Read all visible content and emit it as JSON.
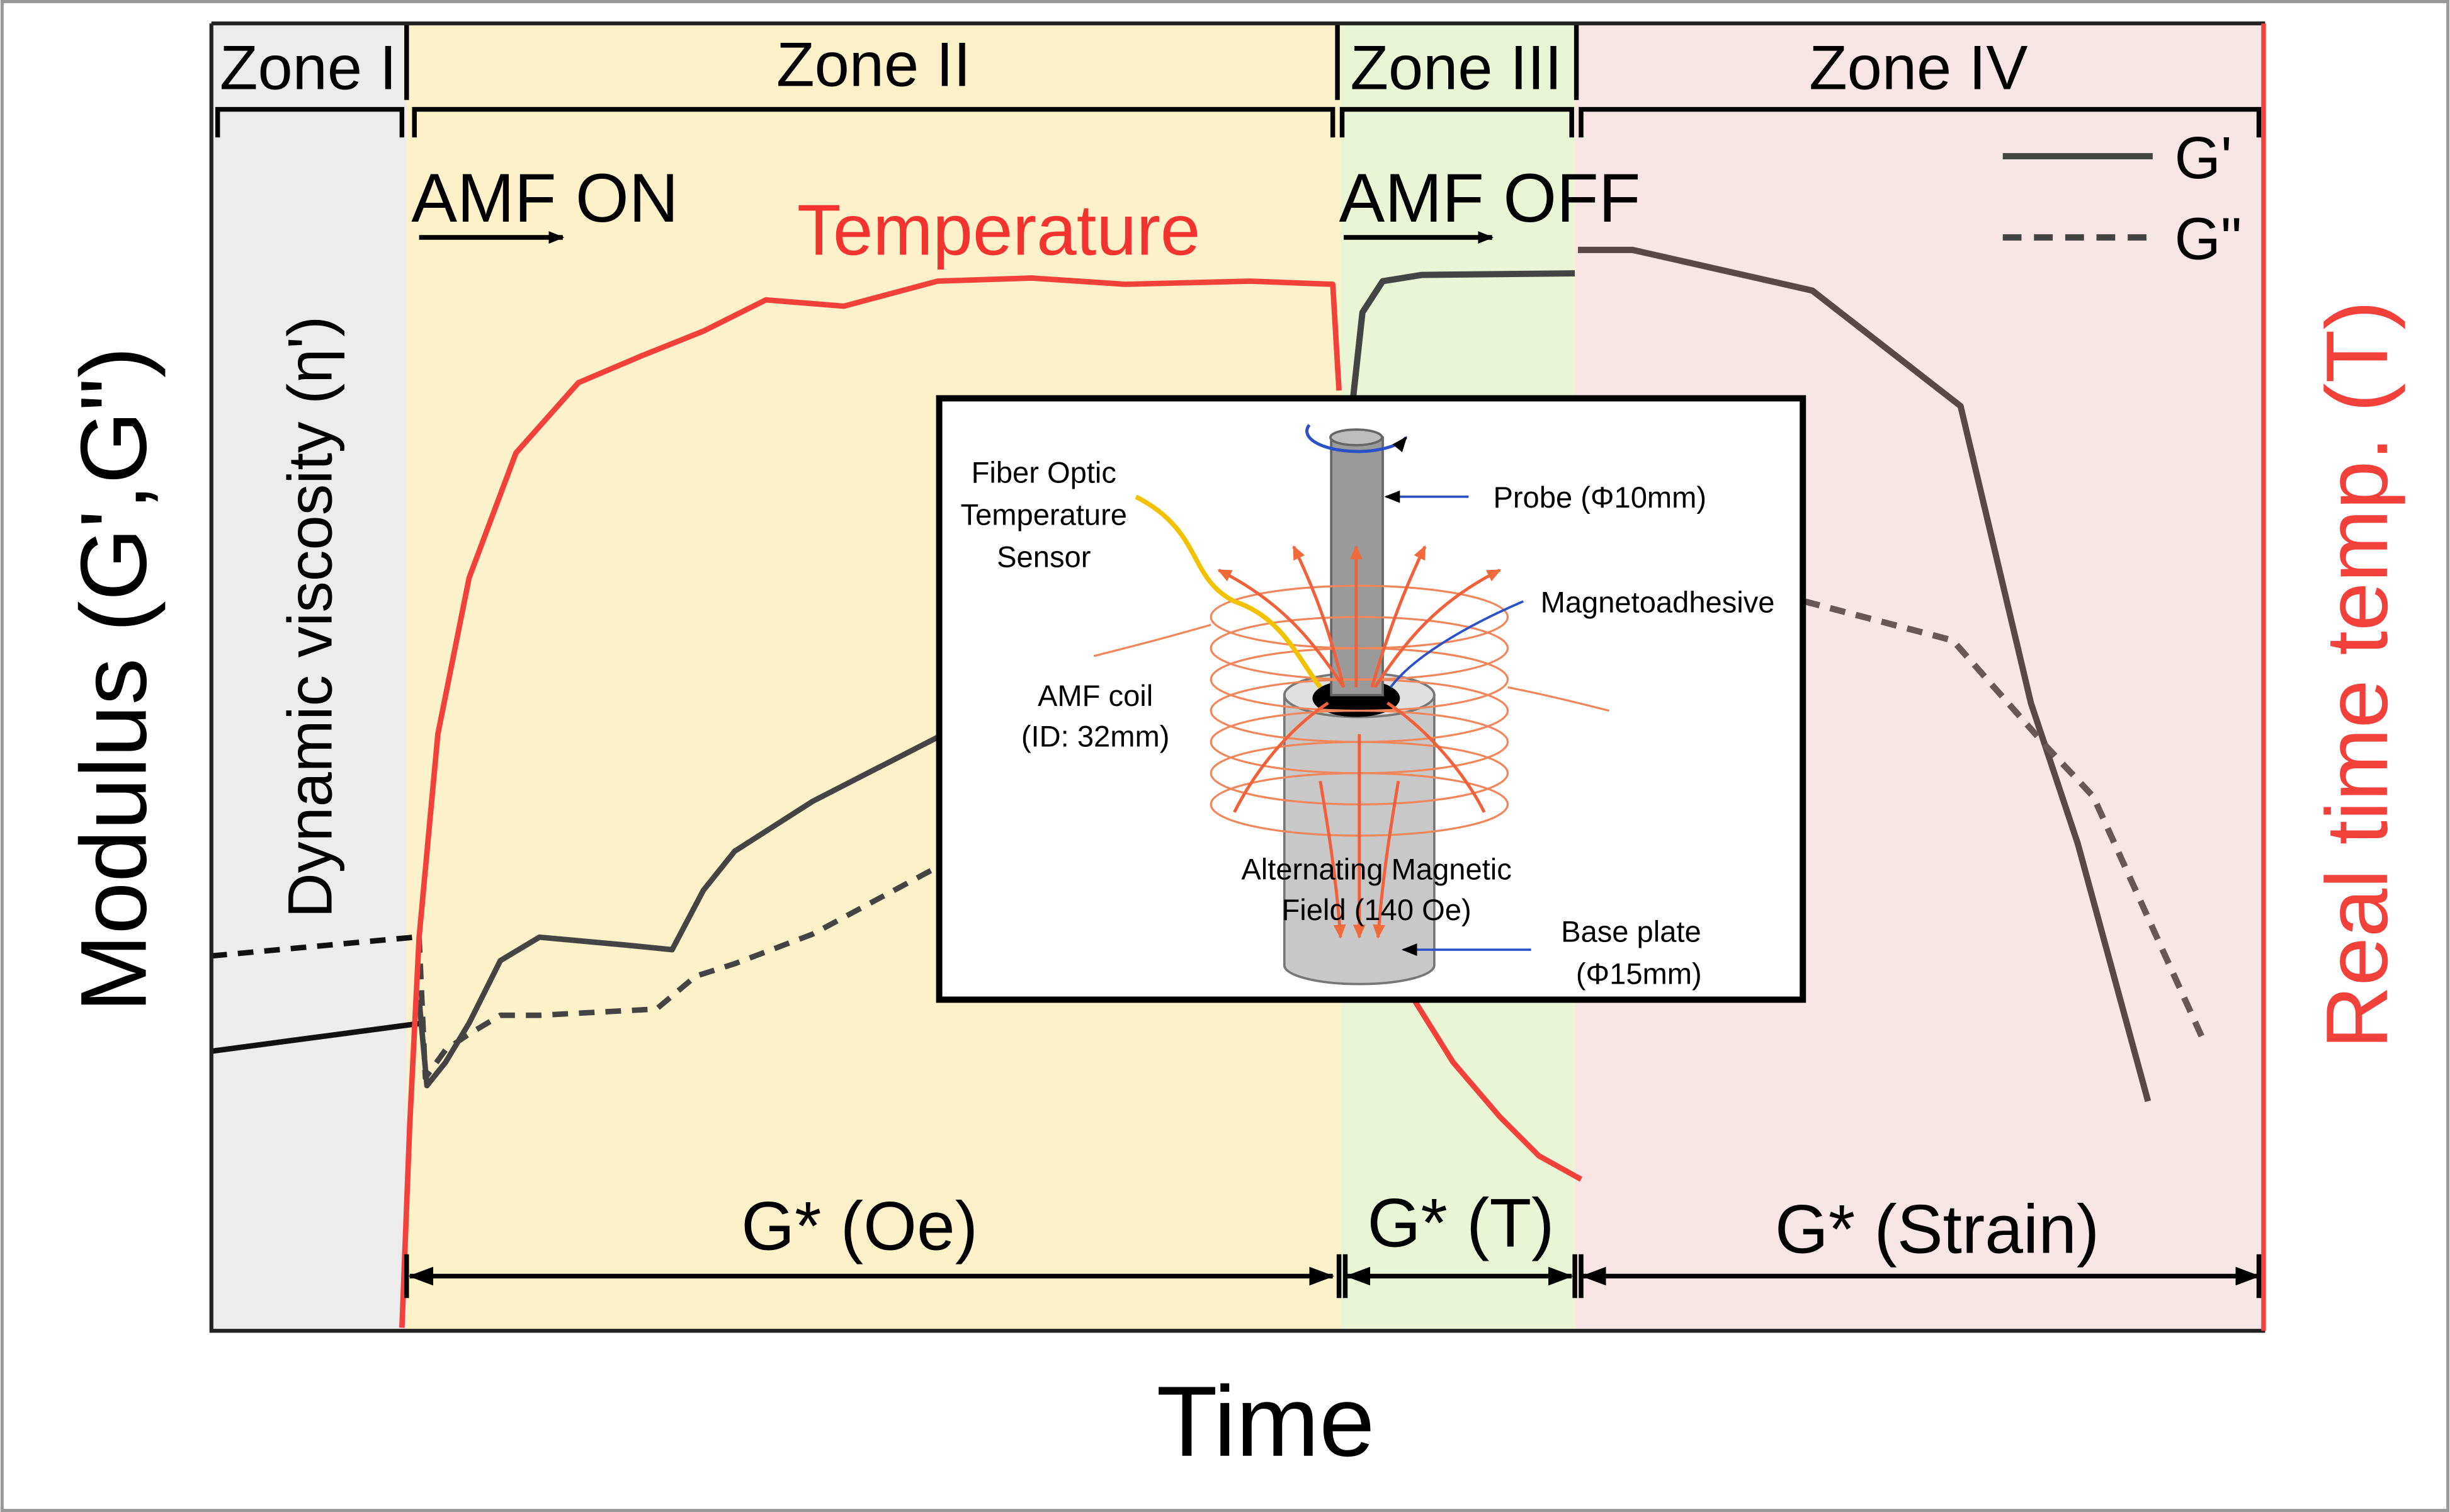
{
  "zones": [
    "Zone I",
    "Zone II",
    "Zone III",
    "Zone IV"
  ],
  "events": [
    "AMF ON",
    "AMF OFF"
  ],
  "temperature_label": "Temperature",
  "y_axis_label": "Modulus (G',G\")",
  "y2_axis_label": "Real time temp. (T)",
  "x_axis_label": "Time",
  "zone1_label": "Dynamic viscosity (η')",
  "legend": [
    "G'",
    "G\""
  ],
  "regimes": [
    "G* (Oe)",
    "G* (T)",
    "G* (Strain)"
  ],
  "inset": {
    "sensor": [
      "Fiber Optic",
      "Temperature",
      "Sensor"
    ],
    "probe": "Probe (Φ10mm)",
    "adhesive": "Magnetoadhesive",
    "coil": [
      "AMF coil",
      "(ID: 32mm)"
    ],
    "field": [
      "Alternating Magnetic",
      "Field (140 Oe)"
    ],
    "base": [
      "Base plate",
      "(Φ15mm)"
    ]
  }
}
